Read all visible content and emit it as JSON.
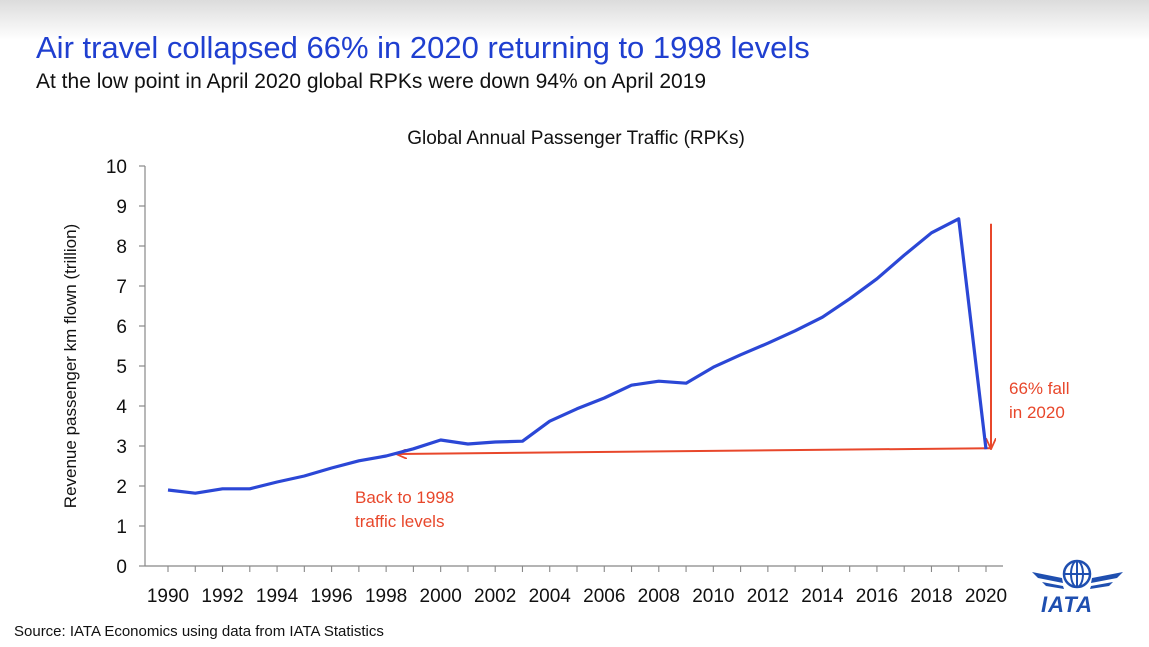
{
  "header": {
    "title": "Air travel collapsed 66% in 2020 returning to 1998 levels",
    "subtitle": "At the low point in April 2020 global RPKs were down 94% on April 2019"
  },
  "footer": {
    "source": "Source: IATA Economics using data from IATA Statistics"
  },
  "logo": {
    "text": "IATA"
  },
  "colors": {
    "line": "#2b47d6",
    "annotation": "#e8472b",
    "title": "#1f3fd0"
  },
  "chart_data": {
    "type": "line",
    "title": "Global Annual Passenger Traffic (RPKs)",
    "ylabel": "Revenue passenger km flown (trillion)",
    "xlabel": "",
    "ylim": [
      0,
      10
    ],
    "yticks": [
      0,
      1,
      2,
      3,
      4,
      5,
      6,
      7,
      8,
      9,
      10
    ],
    "xticks": [
      1990,
      1992,
      1994,
      1996,
      1998,
      2000,
      2002,
      2004,
      2006,
      2008,
      2010,
      2012,
      2014,
      2016,
      2018,
      2020
    ],
    "grid": false,
    "series": [
      {
        "x": [
          1990,
          1991,
          1992,
          1993,
          1994,
          1995,
          1996,
          1997,
          1998,
          1999,
          2000,
          2001,
          2002,
          2003,
          2004,
          2005,
          2006,
          2007,
          2008,
          2009,
          2010,
          2011,
          2012,
          2013,
          2014,
          2015,
          2016,
          2017,
          2018,
          2019,
          2020
        ],
        "values": [
          1.9,
          1.82,
          1.93,
          1.93,
          2.1,
          2.25,
          2.45,
          2.63,
          2.75,
          2.93,
          3.15,
          3.05,
          3.1,
          3.12,
          3.62,
          3.93,
          4.2,
          4.52,
          4.62,
          4.57,
          4.97,
          5.28,
          5.57,
          5.88,
          6.22,
          6.68,
          7.18,
          7.77,
          8.33,
          8.68,
          2.92
        ]
      }
    ],
    "annotations": [
      {
        "text_lines": [
          "66% fall",
          "in 2020"
        ]
      },
      {
        "text_lines": [
          "Back to 1998",
          "traffic levels"
        ]
      }
    ]
  }
}
